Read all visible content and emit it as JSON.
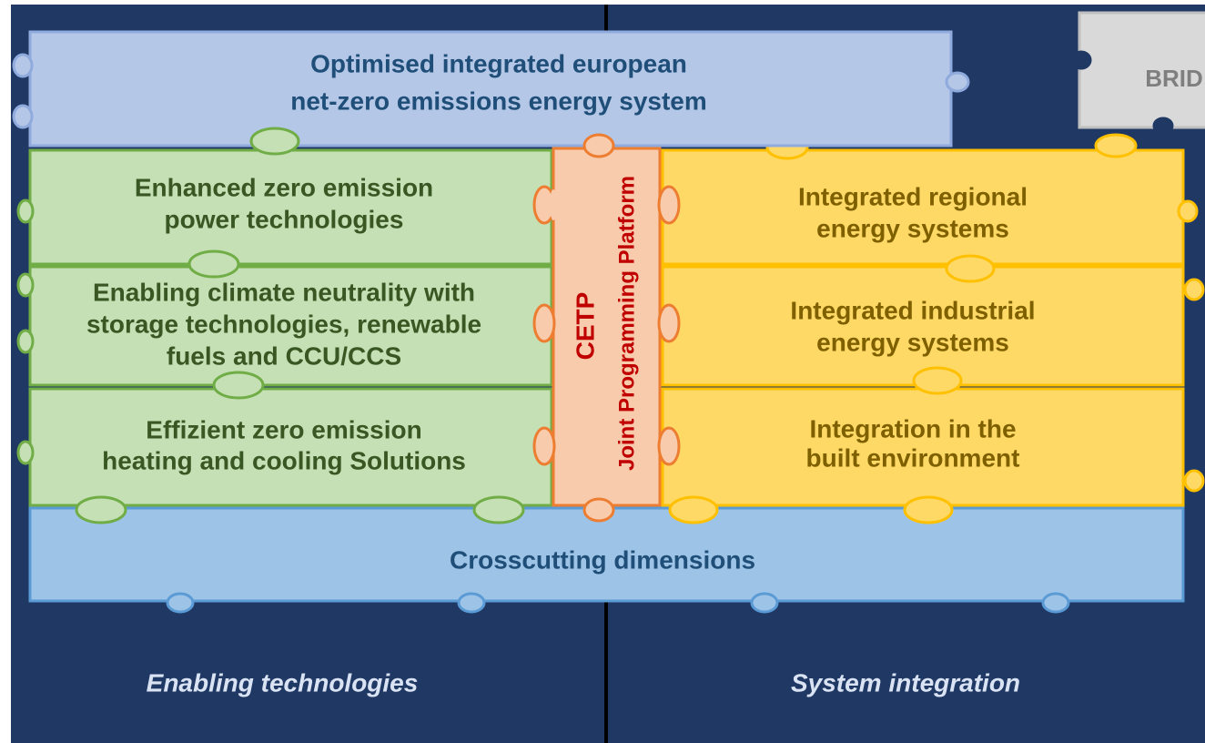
{
  "top_banner": {
    "lines": [
      "Optimised integrated european",
      "net-zero emissions energy system"
    ]
  },
  "bridge": {
    "label": "BRID"
  },
  "enabling_blocks": [
    {
      "lines": [
        "Enhanced zero emission",
        "power technologies"
      ]
    },
    {
      "lines": [
        "Enabling climate neutrality with",
        "storage technologies, renewable",
        "fuels and CCU/CCS"
      ]
    },
    {
      "lines": [
        "Effizient zero emission",
        "heating and cooling Solutions"
      ]
    }
  ],
  "center": {
    "title": "CETP",
    "subtitle": "Joint Programming Platform"
  },
  "integration_blocks": [
    {
      "lines": [
        "Integrated regional",
        "energy systems"
      ]
    },
    {
      "lines": [
        "Integrated industrial",
        "energy systems"
      ]
    },
    {
      "lines": [
        "Integration in the",
        "built environment"
      ]
    }
  ],
  "crosscutting": {
    "label": "Crosscutting dimensions"
  },
  "columns": {
    "left": "Enabling technologies",
    "right": "System integration"
  }
}
